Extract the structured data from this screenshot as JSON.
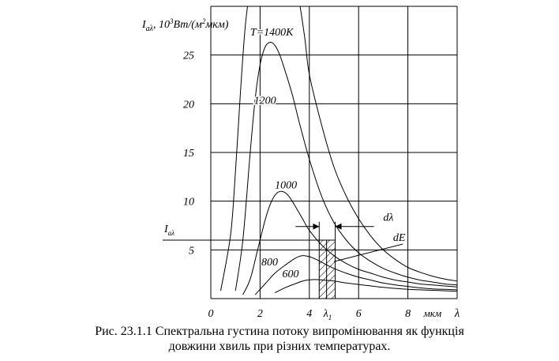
{
  "chart_data": {
    "type": "line",
    "ylabel": "I",
    "ylabel_sub": "аλ",
    "ylabel_rest": ", 10",
    "ylabel_exp": "3",
    "ylabel_unit": "Вт/(м",
    "ylabel_unit_exp": "2",
    "ylabel_unit_rest": "мкм)",
    "xunit": "мкм",
    "xsymbol": "λ",
    "xlim": [
      0,
      10
    ],
    "ylim": [
      0,
      30
    ],
    "x_ticks": [
      {
        "value": 0,
        "label": "0"
      },
      {
        "value": 2,
        "label": "2"
      },
      {
        "value": 4,
        "label": "4"
      },
      {
        "value": 6,
        "label": "6"
      },
      {
        "value": 8,
        "label": "8"
      }
    ],
    "y_ticks": [
      {
        "value": 5,
        "label": "5"
      },
      {
        "value": 10,
        "label": "10"
      },
      {
        "value": 15,
        "label": "15"
      },
      {
        "value": 20,
        "label": "20"
      },
      {
        "value": 25,
        "label": "25"
      }
    ],
    "grid_x": [
      2,
      4,
      6,
      8,
      10
    ],
    "grid_y": [
      5,
      10,
      15,
      20,
      25,
      30
    ],
    "series": [
      {
        "name": "T=1400K",
        "label_at": [
          1.6,
          27.0
        ],
        "x": [
          0.4,
          0.8,
          1.0,
          1.2,
          1.4,
          1.6,
          1.8,
          2.0,
          2.2,
          2.5,
          2.8,
          3.0,
          3.2,
          3.5,
          3.8,
          4.0,
          4.5,
          5.0,
          5.5,
          6.0,
          6.5,
          7.0,
          7.5,
          8.0,
          8.5,
          9.0,
          9.5,
          10.0
        ],
        "y": [
          0.8,
          6.5,
          13.0,
          21.0,
          28.0,
          31.5,
          31.5,
          31.5,
          31.5,
          31.5,
          31.5,
          31.5,
          31.5,
          31.5,
          27.0,
          23.0,
          17.8,
          13.5,
          10.5,
          8.2,
          6.4,
          5.0,
          4.0,
          3.2,
          2.7,
          2.3,
          2.0,
          1.8
        ]
      },
      {
        "name": "1200",
        "label_at": [
          1.75,
          20.0
        ],
        "x": [
          1.0,
          1.3,
          1.6,
          1.8,
          2.0,
          2.2,
          2.4,
          2.6,
          2.8,
          3.0,
          3.3,
          3.6,
          4.0,
          4.5,
          5.0,
          5.5,
          6.0,
          6.5,
          7.0,
          7.5,
          8.0,
          8.5,
          9.0,
          9.5,
          10.0
        ],
        "y": [
          0.8,
          6.0,
          15.0,
          20.5,
          24.0,
          25.8,
          26.3,
          26.0,
          25.0,
          23.5,
          21.0,
          18.0,
          14.3,
          10.5,
          7.8,
          6.0,
          4.7,
          3.8,
          3.1,
          2.6,
          2.2,
          1.9,
          1.7,
          1.5,
          1.4
        ]
      },
      {
        "name": "1000",
        "label_at": [
          2.6,
          11.3
        ],
        "x": [
          1.3,
          1.6,
          1.9,
          2.2,
          2.4,
          2.6,
          2.8,
          3.0,
          3.2,
          3.4,
          3.7,
          4.0,
          4.5,
          5.0,
          5.5,
          6.0,
          6.5,
          7.0,
          7.5,
          8.0,
          8.5,
          9.0,
          9.5,
          10.0
        ],
        "y": [
          0.4,
          2.0,
          5.0,
          8.0,
          9.6,
          10.6,
          11.0,
          10.9,
          10.4,
          9.6,
          8.3,
          7.0,
          5.5,
          4.4,
          3.6,
          3.0,
          2.6,
          2.2,
          1.9,
          1.7,
          1.5,
          1.4,
          1.3,
          1.2
        ]
      },
      {
        "name": "800",
        "label_at": [
          2.05,
          3.4
        ],
        "x": [
          1.8,
          2.2,
          2.6,
          3.0,
          3.4,
          3.7,
          4.0,
          4.3,
          4.6,
          5.0,
          5.5,
          6.0,
          6.5,
          7.0,
          7.5,
          8.0,
          8.5,
          9.0,
          9.5,
          10.0
        ],
        "y": [
          0.4,
          1.5,
          2.6,
          3.4,
          4.1,
          4.4,
          4.3,
          4.0,
          3.6,
          3.1,
          2.6,
          2.2,
          1.9,
          1.6,
          1.4,
          1.25,
          1.1,
          1.0,
          0.95,
          0.9
        ]
      },
      {
        "name": "600",
        "label_at": [
          2.9,
          2.2
        ],
        "x": [
          2.6,
          3.0,
          3.4,
          3.8,
          4.2,
          4.6,
          5.0,
          5.5,
          6.0,
          6.5,
          7.0,
          7.5,
          8.0,
          8.5,
          9.0,
          9.5,
          10.0
        ],
        "y": [
          0.6,
          1.1,
          1.5,
          1.85,
          1.95,
          1.9,
          1.8,
          1.6,
          1.45,
          1.3,
          1.15,
          1.05,
          0.95,
          0.9,
          0.85,
          0.8,
          0.75
        ]
      }
    ],
    "annotations": {
      "I_level_label": "I",
      "I_level_sub": "аλ",
      "I_level_value": 6,
      "lambda_label": "λ",
      "lambda_sub": "1",
      "lambda_x": 4.7,
      "band": [
        4.4,
        5.05
      ],
      "band_top": 6,
      "dlambda_label": "dλ",
      "dE_label": "dE"
    }
  },
  "caption": {
    "line1": "Рис. 23.1.1 Спектральна густина потоку випромінювання як функція",
    "line2": "довжини хвиль при різних температурах."
  }
}
